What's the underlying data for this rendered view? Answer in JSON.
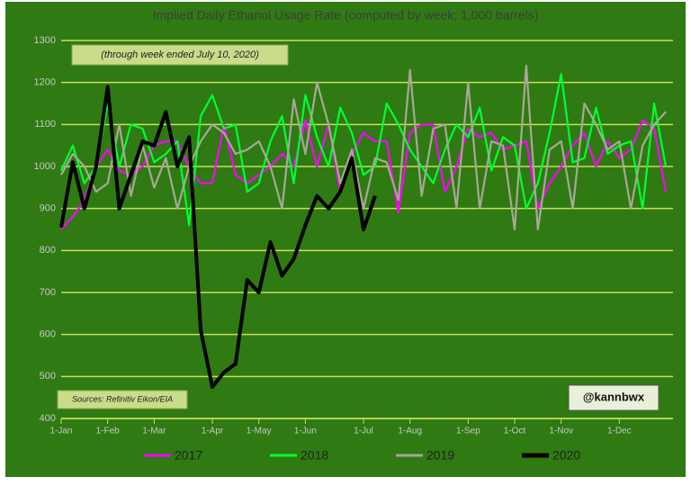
{
  "chart_data": {
    "type": "line",
    "title": "Implied Daily Ethanol Usage Rate (computed by week; 1,000 barrels)",
    "subtitle": "(through week ended July 10, 2020)",
    "source": "Sources: Refinitiv Eikon/EIA",
    "credit": "@kannbwx",
    "categories": [
      "1-Jan",
      null,
      null,
      null,
      "1-Feb",
      null,
      null,
      null,
      "1-Mar",
      null,
      null,
      null,
      null,
      "1-Apr",
      null,
      null,
      null,
      "1-May",
      null,
      null,
      null,
      "1-Jun",
      null,
      null,
      null,
      null,
      "1-Jul",
      null,
      null,
      null,
      "1-Aug",
      null,
      null,
      null,
      null,
      "1-Sep",
      null,
      null,
      null,
      "1-Oct",
      null,
      null,
      null,
      "1-Nov",
      null,
      null,
      null,
      null,
      "1-Dec",
      null,
      null,
      null,
      null
    ],
    "ylim": [
      400,
      1300
    ],
    "yticks": [
      400,
      500,
      600,
      700,
      800,
      900,
      1000,
      1100,
      1200,
      1300
    ],
    "grid": true,
    "legend": "bottom",
    "series": [
      {
        "name": "2017",
        "color": "#ff00ff",
        "values": [
          850,
          880,
          920,
          1000,
          1040,
          990,
          980,
          1000,
          1050,
          1060,
          1060,
          1000,
          960,
          960,
          1100,
          980,
          960,
          980,
          1000,
          1030,
          1000,
          1110,
          1000,
          1100,
          940,
          1030,
          1080,
          1060,
          1060,
          890,
          1080,
          1100,
          1100,
          940,
          1000,
          1090,
          1070,
          1080,
          1040,
          1050,
          1060,
          900,
          960,
          1000,
          1050,
          1080,
          1000,
          1060,
          1020,
          1040,
          1110,
          1090,
          940
        ]
      },
      {
        "name": "2018",
        "color": "#00ff33",
        "values": [
          990,
          1050,
          960,
          1000,
          1150,
          1000,
          1100,
          1090,
          1010,
          1030,
          1060,
          860,
          1120,
          1170,
          1090,
          1100,
          940,
          960,
          1060,
          1120,
          960,
          1170,
          1070,
          1000,
          1140,
          1080,
          980,
          1000,
          1150,
          1100,
          1040,
          1000,
          960,
          1040,
          1100,
          1070,
          1140,
          990,
          1070,
          1050,
          900,
          960,
          1080,
          1220,
          1010,
          1020,
          1140,
          1030,
          1050,
          1060,
          900,
          1150,
          1000
        ]
      },
      {
        "name": "2019",
        "color": "#a8a898",
        "values": [
          980,
          1030,
          1000,
          940,
          960,
          1100,
          930,
          1050,
          950,
          1020,
          900,
          1000,
          1060,
          1100,
          1080,
          1030,
          1040,
          1060,
          1000,
          900,
          1160,
          1030,
          1200,
          1100,
          960,
          1040,
          900,
          1020,
          1010,
          920,
          1230,
          930,
          1090,
          1100,
          900,
          1200,
          900,
          1060,
          1050,
          850,
          1240,
          850,
          1040,
          1060,
          900,
          1150,
          1100,
          1040,
          1060,
          900,
          1050,
          1100,
          1130
        ]
      },
      {
        "name": "2020",
        "color": "#000000",
        "values": [
          855,
          1010,
          900,
          1000,
          1190,
          900,
          980,
          1060,
          1050,
          1130,
          1000,
          1070,
          610,
          475,
          510,
          530,
          730,
          700,
          820,
          740,
          780,
          860,
          930,
          900,
          940,
          1020,
          850,
          930,
          null,
          null,
          null,
          null,
          null,
          null,
          null,
          null,
          null,
          null,
          null,
          null,
          null,
          null,
          null,
          null,
          null,
          null,
          null,
          null,
          null,
          null,
          null,
          null,
          null
        ]
      }
    ]
  }
}
